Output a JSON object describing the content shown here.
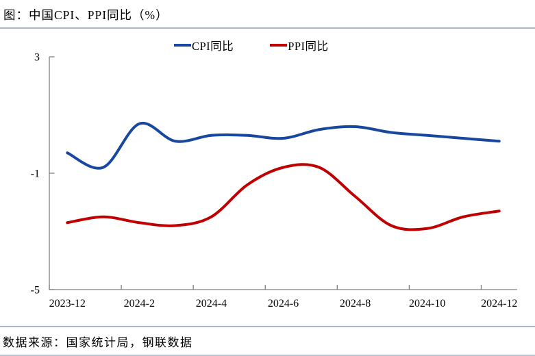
{
  "page": {
    "title": "图：中国CPI、PPI同比（%）",
    "footer_source": "数据来源：国家统计局，钢联数据"
  },
  "chart_data": {
    "type": "line",
    "title": "图：中国CPI、PPI同比（%）",
    "smooth": true,
    "grid": false,
    "legend_position": "top",
    "categories": [
      "2023-12",
      "2024-1",
      "2024-2",
      "2024-3",
      "2024-4",
      "2024-5",
      "2024-6",
      "2024-7",
      "2024-8",
      "2024-9",
      "2024-10",
      "2024-11",
      "2024-12"
    ],
    "x_tick_labels": [
      "2023-12",
      "2024-2",
      "2024-4",
      "2024-6",
      "2024-8",
      "2024-10",
      "2024-12"
    ],
    "y_axis": {
      "min": -5,
      "max": 3,
      "ticks": [
        3,
        -1,
        -5
      ]
    },
    "series": [
      {
        "name": "CPI同比",
        "color": "#17479E",
        "values": [
          -0.3,
          -0.8,
          0.7,
          0.1,
          0.3,
          0.3,
          0.2,
          0.5,
          0.6,
          0.4,
          0.3,
          0.2,
          0.1
        ]
      },
      {
        "name": "PPI同比",
        "color": "#C00000",
        "values": [
          -2.7,
          -2.5,
          -2.7,
          -2.8,
          -2.5,
          -1.4,
          -0.8,
          -0.8,
          -1.8,
          -2.8,
          -2.9,
          -2.5,
          -2.3
        ]
      }
    ],
    "colors": {
      "axis": "#7F7F7F",
      "divider": "#A9B6C9",
      "cpi_blue": "#17479E",
      "ppi_red": "#C00000"
    }
  }
}
